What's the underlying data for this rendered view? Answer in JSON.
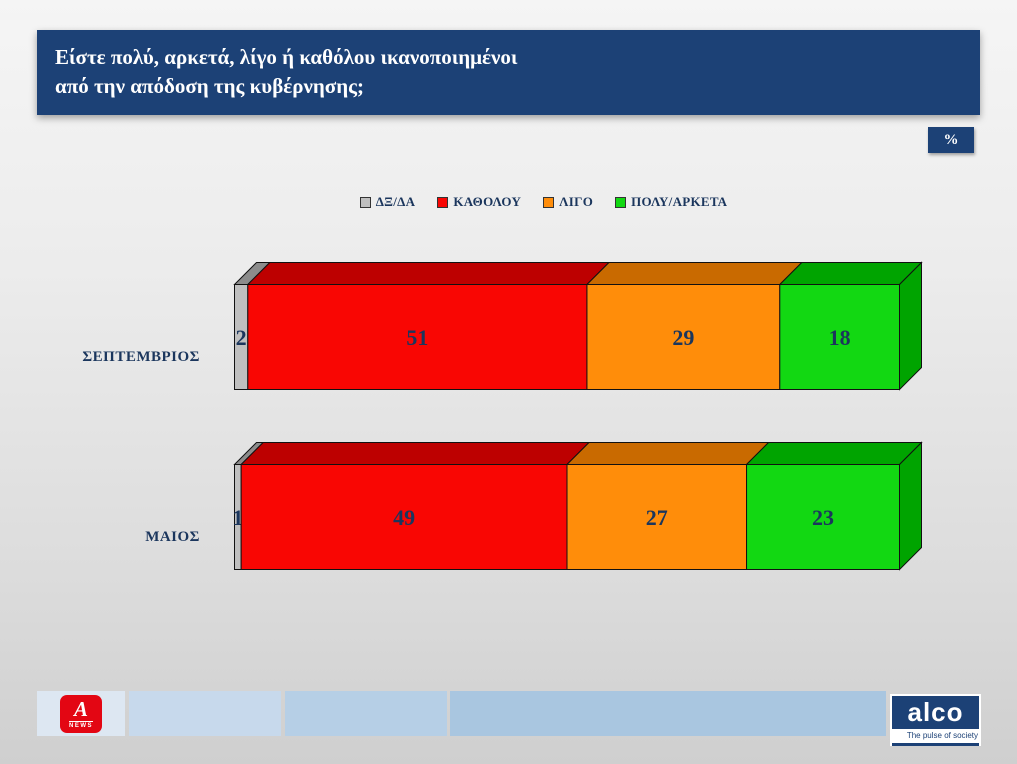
{
  "title": {
    "line1": "Είστε πολύ, αρκετά, λίγο ή καθόλου ικανοποιημένοι",
    "line2": "από την απόδοση της κυβέρνησης;"
  },
  "percent_badge": "%",
  "chart_data": {
    "type": "bar",
    "orientation": "horizontal",
    "stacked": true,
    "effect": "3d",
    "categories": [
      "ΣΕΠΤΕΜΒΡΙΟΣ",
      "ΜΑΙΟΣ"
    ],
    "series": [
      {
        "name": "ΔΞ/ΔΑ",
        "color": "#bfbfbf",
        "top_color": "#8c8c8c",
        "values": [
          2,
          1
        ]
      },
      {
        "name": "ΚΑΘΟΛΟΥ",
        "color": "#f90603",
        "top_color": "#bd0000",
        "values": [
          51,
          49
        ]
      },
      {
        "name": "ΛΙΓΟ",
        "color": "#ff8d0a",
        "top_color": "#c96a00",
        "values": [
          29,
          27
        ]
      },
      {
        "name": "ΠΟΛΥ/ΑΡΚΕΤΑ",
        "color": "#12d812",
        "top_color": "#00a400",
        "values": [
          18,
          23
        ]
      }
    ],
    "xlim": [
      0,
      100
    ],
    "legend_position": "top",
    "value_labels": true,
    "value_label_color": "#1b365d"
  },
  "footer": {
    "alpha_logo": {
      "letter": "A",
      "text": "NEWS"
    },
    "alco_logo": {
      "text": "alco",
      "tagline": "The pulse of society"
    }
  },
  "colors": {
    "banner": "#1c4176",
    "accent_navy": "#1b365d",
    "alpha_red": "#e30613"
  }
}
